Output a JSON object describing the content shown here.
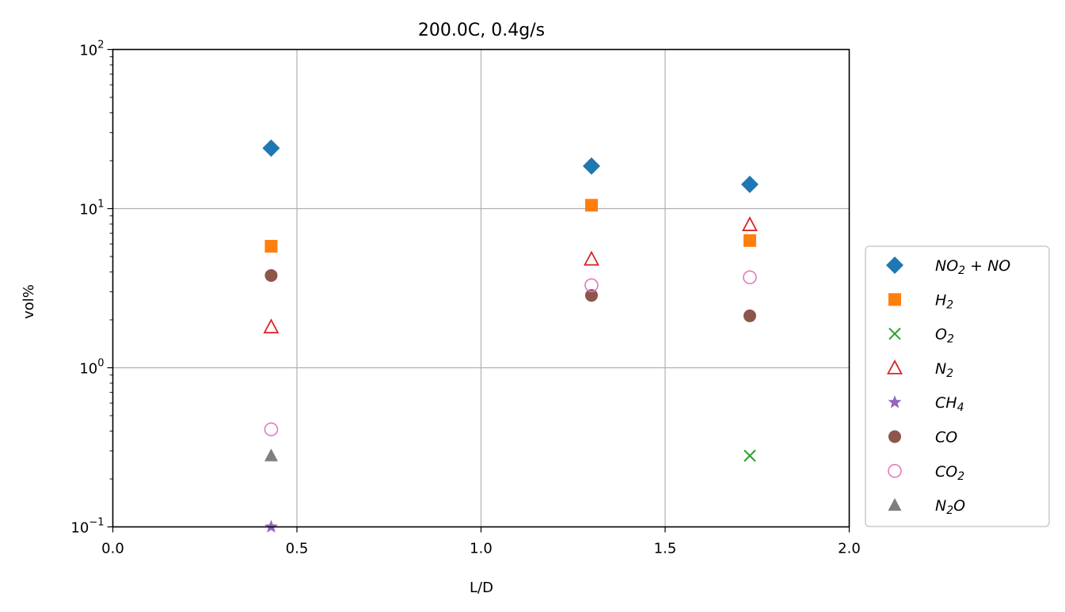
{
  "chart_data": {
    "type": "scatter",
    "title": "200.0C, 0.4g/s",
    "xlabel": "L/D",
    "ylabel": "vol%",
    "xlim": [
      0.0,
      2.0
    ],
    "ylim": [
      0.1,
      100
    ],
    "yscale": "log",
    "grid": true,
    "legend_position": "right, outside plot",
    "x_ticks": [
      "0.0",
      "0.5",
      "1.0",
      "1.5",
      "2.0"
    ],
    "y_ticks": [
      {
        "value": 0.1,
        "base": "10",
        "exp": "−1"
      },
      {
        "value": 1,
        "base": "10",
        "exp": "0"
      },
      {
        "value": 10,
        "base": "10",
        "exp": "1"
      },
      {
        "value": 100,
        "base": "10",
        "exp": "2"
      }
    ],
    "series": [
      {
        "name": "NO2+NO",
        "label_parts": [
          {
            "t": "NO"
          },
          {
            "t": "2",
            "sub": true
          },
          {
            "t": " + NO"
          }
        ],
        "marker": "diamond",
        "color": "#1f77b4",
        "filled": true,
        "x": [
          0.43,
          1.3,
          1.73
        ],
        "y": [
          24.0,
          18.5,
          14.2
        ]
      },
      {
        "name": "H2",
        "label_parts": [
          {
            "t": "H"
          },
          {
            "t": "2",
            "sub": true
          }
        ],
        "marker": "square",
        "color": "#ff7f0e",
        "filled": true,
        "x": [
          0.43,
          1.3,
          1.73
        ],
        "y": [
          5.8,
          10.5,
          6.3
        ]
      },
      {
        "name": "O2",
        "label_parts": [
          {
            "t": "O"
          },
          {
            "t": "2",
            "sub": true
          }
        ],
        "marker": "x",
        "color": "#2ca02c",
        "filled": false,
        "x": [
          1.73
        ],
        "y": [
          0.28
        ]
      },
      {
        "name": "N2",
        "label_parts": [
          {
            "t": "N"
          },
          {
            "t": "2",
            "sub": true
          }
        ],
        "marker": "triangle",
        "color": "#d62728",
        "filled": false,
        "x": [
          0.43,
          1.3,
          1.73
        ],
        "y": [
          1.8,
          4.8,
          7.9
        ]
      },
      {
        "name": "CH4",
        "label_parts": [
          {
            "t": "CH"
          },
          {
            "t": "4",
            "sub": true
          }
        ],
        "marker": "star",
        "color": "#9467bd",
        "filled": true,
        "x": [
          0.43
        ],
        "y": [
          0.1
        ]
      },
      {
        "name": "CO",
        "label_parts": [
          {
            "t": "CO"
          }
        ],
        "marker": "circle",
        "color": "#8c564b",
        "filled": true,
        "x": [
          0.43,
          1.3,
          1.73
        ],
        "y": [
          3.8,
          2.85,
          2.12
        ]
      },
      {
        "name": "CO2",
        "label_parts": [
          {
            "t": "CO"
          },
          {
            "t": "2",
            "sub": true
          }
        ],
        "marker": "circle",
        "color": "#e377c2",
        "filled": false,
        "x": [
          0.43,
          1.3,
          1.73
        ],
        "y": [
          0.41,
          3.3,
          3.7
        ]
      },
      {
        "name": "N2O",
        "label_parts": [
          {
            "t": "N"
          },
          {
            "t": "2",
            "sub": true
          },
          {
            "t": "O"
          }
        ],
        "marker": "triangle",
        "color": "#7f7f7f",
        "filled": true,
        "x": [
          0.43
        ],
        "y": [
          0.28
        ]
      }
    ]
  }
}
